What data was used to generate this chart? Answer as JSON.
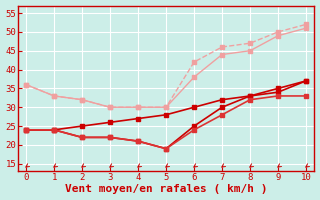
{
  "background_color": "#cceee8",
  "grid_color": "#ffffff",
  "xlabel": "Vent moyen/en rafales ( km/h )",
  "xlabel_color": "#cc0000",
  "xlabel_fontsize": 8,
  "tick_color": "#cc0000",
  "xlim": [
    -0.3,
    10.3
  ],
  "ylim": [
    13,
    57
  ],
  "yticks": [
    15,
    20,
    25,
    30,
    35,
    40,
    45,
    50,
    55
  ],
  "xticks": [
    0,
    1,
    2,
    3,
    4,
    5,
    6,
    7,
    8,
    9,
    10
  ],
  "lines": [
    {
      "x": [
        0,
        1,
        2,
        3,
        4,
        5,
        6,
        7,
        8,
        9,
        10
      ],
      "y": [
        36,
        33,
        32,
        30,
        30,
        30,
        38,
        44,
        45,
        49,
        51
      ],
      "color": "#f0a0a0",
      "linewidth": 1.0,
      "marker": "s",
      "markersize": 2.5,
      "linestyle": "-"
    },
    {
      "x": [
        0,
        1,
        2,
        3,
        4,
        5,
        6,
        7,
        8,
        9,
        10
      ],
      "y": [
        36,
        33,
        32,
        30,
        30,
        30,
        42,
        46,
        47,
        50,
        52
      ],
      "color": "#f0a0a0",
      "linewidth": 1.0,
      "marker": "s",
      "markersize": 2.5,
      "linestyle": "--"
    },
    {
      "x": [
        0,
        1,
        2,
        3,
        4,
        5,
        6,
        7,
        8,
        9,
        10
      ],
      "y": [
        24,
        24,
        25,
        26,
        27,
        28,
        30,
        32,
        33,
        35,
        37
      ],
      "color": "#cc0000",
      "linewidth": 1.2,
      "marker": "s",
      "markersize": 2.5,
      "linestyle": "-"
    },
    {
      "x": [
        0,
        1,
        2,
        3,
        4,
        5,
        6,
        7,
        8,
        9,
        10
      ],
      "y": [
        24,
        24,
        22,
        22,
        21,
        19,
        25,
        30,
        33,
        34,
        37
      ],
      "color": "#cc0000",
      "linewidth": 1.2,
      "marker": "s",
      "markersize": 2.5,
      "linestyle": "-"
    },
    {
      "x": [
        0,
        1,
        2,
        3,
        4,
        5,
        6,
        7,
        8,
        9,
        10
      ],
      "y": [
        24,
        24,
        22,
        22,
        21,
        19,
        24,
        28,
        32,
        33,
        33
      ],
      "color": "#dd3333",
      "linewidth": 1.2,
      "marker": "s",
      "markersize": 2.5,
      "linestyle": "-"
    }
  ]
}
